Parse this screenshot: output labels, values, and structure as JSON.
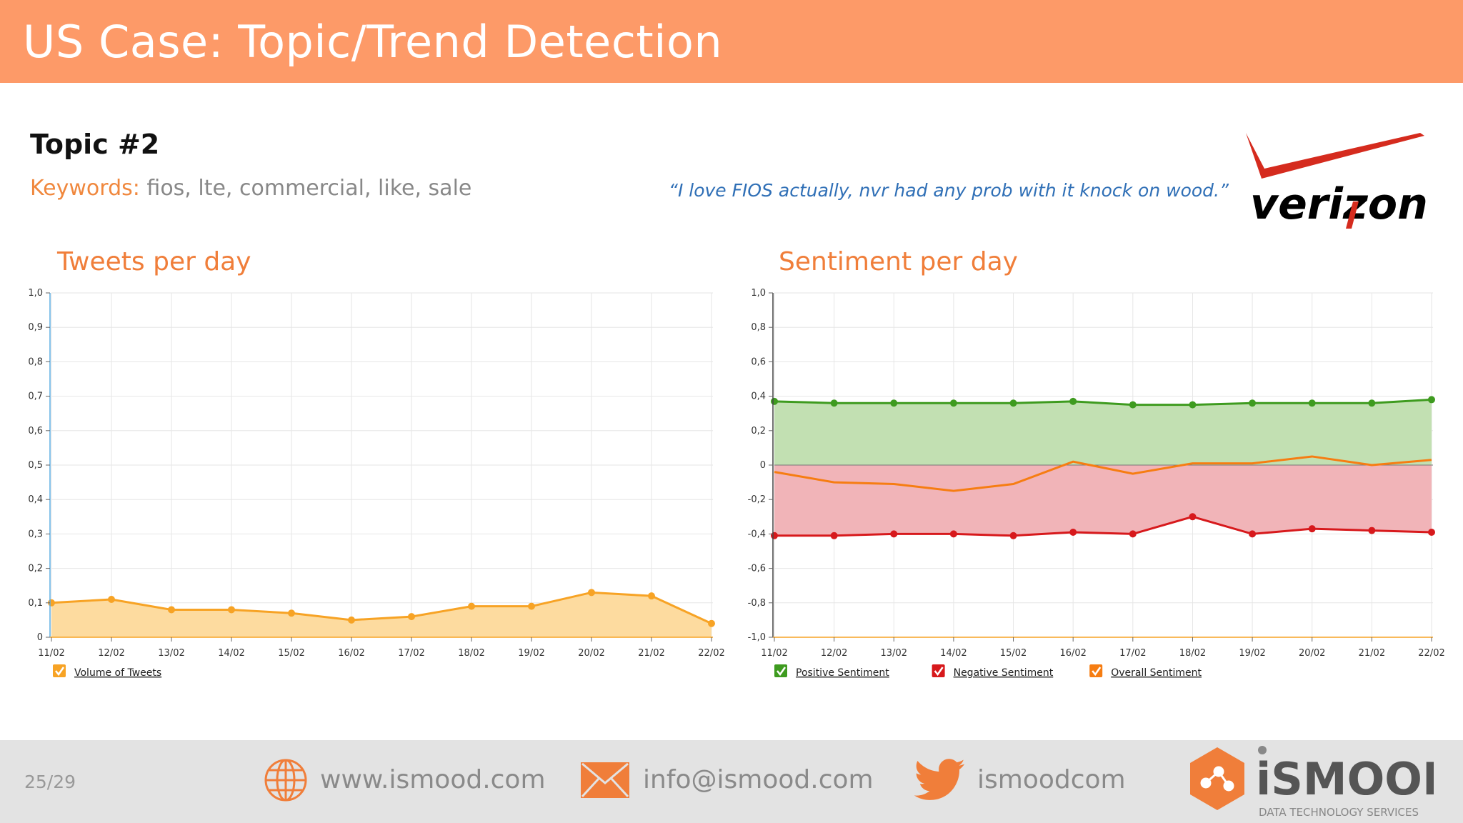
{
  "header": {
    "title": "US Case: Topic/Trend Detection"
  },
  "topic": {
    "title": "Topic #2",
    "keywords_label": "Keywords:",
    "keywords": "fios, lte, commercial, like, sale",
    "quote": "“I love FIOS actually, nvr had any prob with it knock on wood.”"
  },
  "brand_logo": {
    "text": "verizon",
    "color": "#000000",
    "accent": "#D52B1E"
  },
  "colors": {
    "header_bg": "#FD9A68",
    "tweets_line": "#F7A325",
    "tweets_fill": "#FDDB9F",
    "positive": "#3E9B1F",
    "positive_fill": "#C2E0B2",
    "negative": "#D7191C",
    "negative_fill": "#F1B4B8",
    "overall": "#F67D12"
  },
  "chart_data": [
    {
      "type": "area",
      "title": "Tweets per day",
      "x": [
        "11/02",
        "12/02",
        "13/02",
        "14/02",
        "15/02",
        "16/02",
        "17/02",
        "18/02",
        "19/02",
        "20/02",
        "21/02",
        "22/02"
      ],
      "y_ticks": [
        "0",
        "0,1",
        "0,2",
        "0,3",
        "0,4",
        "0,5",
        "0,6",
        "0,7",
        "0,8",
        "0,9",
        "1,0"
      ],
      "ylim": [
        0,
        1.0
      ],
      "grid": true,
      "series": [
        {
          "name": "Volume of Tweets",
          "values": [
            0.1,
            0.11,
            0.08,
            0.08,
            0.07,
            0.05,
            0.06,
            0.09,
            0.09,
            0.13,
            0.12,
            0.04
          ]
        }
      ],
      "legend_position": "bottom-left"
    },
    {
      "type": "line",
      "title": "Sentiment per day",
      "x": [
        "11/02",
        "12/02",
        "13/02",
        "14/02",
        "15/02",
        "16/02",
        "17/02",
        "18/02",
        "19/02",
        "20/02",
        "21/02",
        "22/02"
      ],
      "y_ticks": [
        "-1,0",
        "-0,8",
        "-0,6",
        "-0,4",
        "-0,2",
        "0",
        "0,2",
        "0,4",
        "0,6",
        "0,8",
        "1,0"
      ],
      "ylim": [
        -1.0,
        1.0
      ],
      "grid": true,
      "series": [
        {
          "name": "Positive Sentiment",
          "values": [
            0.37,
            0.36,
            0.36,
            0.36,
            0.36,
            0.37,
            0.35,
            0.35,
            0.36,
            0.36,
            0.36,
            0.38
          ]
        },
        {
          "name": "Negative Sentiment",
          "values": [
            -0.41,
            -0.41,
            -0.4,
            -0.4,
            -0.41,
            -0.39,
            -0.4,
            -0.3,
            -0.4,
            -0.37,
            -0.38,
            -0.39
          ]
        },
        {
          "name": "Overall Sentiment",
          "values": [
            -0.04,
            -0.1,
            -0.11,
            -0.15,
            -0.11,
            0.02,
            -0.05,
            0.01,
            0.01,
            0.05,
            0.0,
            0.03
          ]
        }
      ],
      "legend_position": "bottom-left"
    }
  ],
  "footer": {
    "page": "25/29",
    "website": "www.ismood.com",
    "email": "info@ismood.com",
    "twitter": "ismoodcom",
    "logo_text": "iSMOOD",
    "logo_tagline": "DATA TECHNOLOGY SERVICES"
  }
}
